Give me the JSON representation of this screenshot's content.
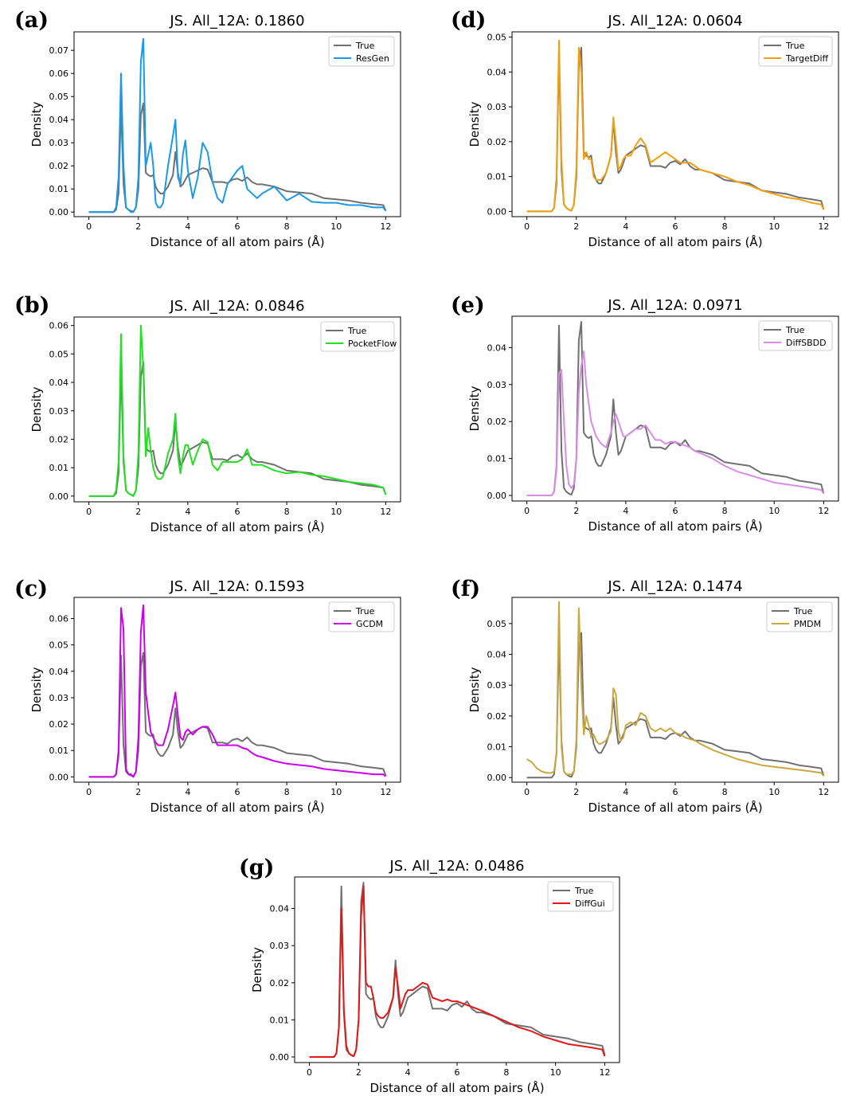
{
  "x_axis_label": "Distance of all atom pairs (Å)",
  "y_axis_label": "Density",
  "true_series": {
    "name": "True",
    "color": "#707070",
    "x": [
      0,
      0.5,
      1.0,
      1.1,
      1.2,
      1.3,
      1.4,
      1.5,
      1.6,
      1.7,
      1.8,
      1.9,
      2.0,
      2.1,
      2.2,
      2.3,
      2.4,
      2.5,
      2.6,
      2.7,
      2.8,
      2.9,
      3.0,
      3.2,
      3.4,
      3.5,
      3.6,
      3.7,
      3.8,
      3.9,
      4.0,
      4.2,
      4.4,
      4.6,
      4.8,
      5.0,
      5.2,
      5.4,
      5.6,
      5.8,
      6.0,
      6.2,
      6.4,
      6.6,
      6.8,
      7.0,
      7.5,
      8.0,
      8.5,
      9.0,
      9.5,
      10.0,
      10.5,
      11.0,
      11.5,
      11.9,
      12.0
    ],
    "y": [
      0,
      0,
      0,
      0.001,
      0.008,
      0.046,
      0.012,
      0.002,
      0.001,
      0.0005,
      0.0002,
      0.002,
      0.01,
      0.042,
      0.047,
      0.017,
      0.016,
      0.0155,
      0.016,
      0.011,
      0.009,
      0.008,
      0.008,
      0.011,
      0.016,
      0.026,
      0.017,
      0.011,
      0.012,
      0.014,
      0.016,
      0.017,
      0.018,
      0.019,
      0.0185,
      0.013,
      0.013,
      0.013,
      0.0125,
      0.014,
      0.0145,
      0.0135,
      0.015,
      0.013,
      0.012,
      0.012,
      0.011,
      0.009,
      0.0085,
      0.008,
      0.006,
      0.0055,
      0.005,
      0.004,
      0.0035,
      0.003,
      0.0005
    ]
  },
  "panels": [
    {
      "label": "(a)",
      "title": "JS. All_12A: 0.1860",
      "series_name": "ResGen",
      "color": "#1a9ae6",
      "yticks": [
        0.0,
        0.01,
        0.02,
        0.03,
        0.04,
        0.05,
        0.06,
        0.07
      ],
      "ylim": [
        -0.002,
        0.078
      ],
      "x": [
        0,
        0.5,
        1.0,
        1.1,
        1.2,
        1.3,
        1.4,
        1.5,
        1.6,
        1.7,
        1.8,
        1.9,
        2.0,
        2.1,
        2.2,
        2.3,
        2.4,
        2.5,
        2.6,
        2.7,
        2.8,
        2.9,
        3.0,
        3.2,
        3.4,
        3.5,
        3.6,
        3.7,
        3.8,
        3.9,
        4.0,
        4.2,
        4.4,
        4.6,
        4.8,
        5.0,
        5.2,
        5.4,
        5.6,
        5.8,
        6.0,
        6.2,
        6.4,
        6.6,
        6.8,
        7.0,
        7.5,
        8.0,
        8.5,
        9.0,
        9.5,
        10.0,
        10.5,
        11.0,
        11.5,
        11.9,
        12.0
      ],
      "y": [
        0,
        0,
        0,
        0.002,
        0.015,
        0.06,
        0.02,
        0.002,
        0.001,
        0,
        0,
        0.002,
        0.015,
        0.065,
        0.075,
        0.02,
        0.025,
        0.03,
        0.02,
        0.004,
        0.002,
        0.002,
        0.004,
        0.02,
        0.033,
        0.04,
        0.015,
        0.012,
        0.025,
        0.031,
        0.018,
        0.006,
        0.015,
        0.03,
        0.026,
        0.013,
        0.006,
        0.004,
        0.012,
        0.015,
        0.018,
        0.02,
        0.01,
        0.008,
        0.006,
        0.008,
        0.011,
        0.005,
        0.008,
        0.0045,
        0.004,
        0.004,
        0.003,
        0.003,
        0.002,
        0.002,
        0.0005
      ]
    },
    {
      "label": "(b)",
      "title": "JS. All_12A: 0.0846",
      "series_name": "PocketFlow",
      "color": "#22e022",
      "yticks": [
        0.0,
        0.01,
        0.02,
        0.03,
        0.04,
        0.05,
        0.06
      ],
      "ylim": [
        -0.002,
        0.063
      ],
      "x": [
        0,
        0.5,
        1.0,
        1.1,
        1.2,
        1.3,
        1.4,
        1.5,
        1.6,
        1.7,
        1.8,
        1.9,
        2.0,
        2.1,
        2.2,
        2.3,
        2.4,
        2.5,
        2.6,
        2.7,
        2.8,
        2.9,
        3.0,
        3.2,
        3.4,
        3.5,
        3.6,
        3.7,
        3.8,
        3.9,
        4.0,
        4.2,
        4.4,
        4.6,
        4.8,
        5.0,
        5.2,
        5.4,
        5.6,
        5.8,
        6.0,
        6.2,
        6.4,
        6.6,
        6.8,
        7.0,
        7.5,
        8.0,
        8.5,
        9.0,
        9.5,
        10.0,
        10.5,
        11.0,
        11.5,
        11.9,
        12.0
      ],
      "y": [
        0,
        0,
        0,
        0.002,
        0.012,
        0.057,
        0.014,
        0.002,
        0.001,
        0.0005,
        0,
        0.002,
        0.015,
        0.06,
        0.045,
        0.014,
        0.024,
        0.016,
        0.01,
        0.007,
        0.006,
        0.006,
        0.007,
        0.015,
        0.02,
        0.029,
        0.014,
        0.008,
        0.014,
        0.018,
        0.018,
        0.011,
        0.016,
        0.02,
        0.019,
        0.011,
        0.009,
        0.012,
        0.012,
        0.012,
        0.012,
        0.013,
        0.0165,
        0.011,
        0.011,
        0.011,
        0.009,
        0.008,
        0.0085,
        0.0075,
        0.007,
        0.006,
        0.005,
        0.0045,
        0.004,
        0.003,
        0.0005
      ]
    },
    {
      "label": "(c)",
      "title": "JS. All_12A: 0.1593",
      "series_name": "GCDM",
      "color": "#cc00ee",
      "yticks": [
        0.0,
        0.01,
        0.02,
        0.03,
        0.04,
        0.05,
        0.06
      ],
      "ylim": [
        -0.002,
        0.068
      ],
      "x": [
        0,
        0.5,
        1.0,
        1.1,
        1.2,
        1.3,
        1.4,
        1.5,
        1.6,
        1.7,
        1.8,
        1.9,
        2.0,
        2.1,
        2.2,
        2.3,
        2.4,
        2.5,
        2.6,
        2.7,
        2.8,
        2.9,
        3.0,
        3.2,
        3.4,
        3.5,
        3.6,
        3.7,
        3.8,
        3.9,
        4.0,
        4.2,
        4.4,
        4.6,
        4.8,
        5.0,
        5.2,
        5.4,
        5.6,
        5.8,
        6.0,
        6.2,
        6.4,
        6.6,
        6.8,
        7.0,
        7.5,
        8.0,
        8.5,
        9.0,
        9.5,
        10.0,
        10.5,
        11.0,
        11.5,
        11.9,
        12.0
      ],
      "y": [
        0,
        0,
        0,
        0.001,
        0.01,
        0.064,
        0.056,
        0.003,
        0.001,
        0.001,
        0,
        0.002,
        0.015,
        0.055,
        0.065,
        0.032,
        0.024,
        0.017,
        0.015,
        0.013,
        0.012,
        0.012,
        0.012,
        0.018,
        0.027,
        0.032,
        0.023,
        0.015,
        0.014,
        0.017,
        0.018,
        0.016,
        0.018,
        0.019,
        0.019,
        0.016,
        0.012,
        0.012,
        0.012,
        0.012,
        0.012,
        0.011,
        0.0105,
        0.009,
        0.008,
        0.0075,
        0.006,
        0.005,
        0.0045,
        0.004,
        0.003,
        0.0025,
        0.002,
        0.0015,
        0.001,
        0.001,
        0.0002
      ]
    },
    {
      "label": "(d)",
      "title": "JS. All_12A: 0.0604",
      "series_name": "TargetDiff",
      "color": "#f0a010",
      "yticks": [
        0.0,
        0.01,
        0.02,
        0.03,
        0.04,
        0.05
      ],
      "ylim": [
        -0.0015,
        0.0515
      ],
      "x": [
        0,
        0.5,
        1.0,
        1.1,
        1.2,
        1.3,
        1.4,
        1.5,
        1.6,
        1.7,
        1.8,
        1.9,
        2.0,
        2.1,
        2.2,
        2.3,
        2.4,
        2.5,
        2.6,
        2.7,
        2.8,
        2.9,
        3.0,
        3.2,
        3.4,
        3.5,
        3.6,
        3.7,
        3.8,
        3.9,
        4.0,
        4.2,
        4.4,
        4.6,
        4.8,
        5.0,
        5.2,
        5.4,
        5.6,
        5.8,
        6.0,
        6.2,
        6.4,
        6.6,
        6.8,
        7.0,
        7.5,
        8.0,
        8.5,
        9.0,
        9.5,
        10.0,
        10.5,
        11.0,
        11.5,
        11.9,
        12.0
      ],
      "y": [
        0,
        0,
        0,
        0.001,
        0.01,
        0.049,
        0.015,
        0.002,
        0.001,
        0.0005,
        0.0002,
        0.002,
        0.012,
        0.047,
        0.04,
        0.015,
        0.017,
        0.015,
        0.015,
        0.01,
        0.009,
        0.009,
        0.009,
        0.011,
        0.016,
        0.027,
        0.02,
        0.012,
        0.013,
        0.015,
        0.016,
        0.016,
        0.019,
        0.021,
        0.019,
        0.014,
        0.015,
        0.016,
        0.017,
        0.016,
        0.015,
        0.014,
        0.014,
        0.014,
        0.013,
        0.012,
        0.011,
        0.01,
        0.0085,
        0.0075,
        0.006,
        0.005,
        0.004,
        0.0035,
        0.0025,
        0.002,
        0.0005
      ]
    },
    {
      "label": "(e)",
      "title": "JS. All_12A: 0.0971",
      "series_name": "DiffSBDD",
      "color": "#d98ce6",
      "yticks": [
        0.0,
        0.01,
        0.02,
        0.03,
        0.04
      ],
      "ylim": [
        -0.0015,
        0.0485
      ],
      "x": [
        0,
        0.5,
        1.0,
        1.1,
        1.2,
        1.3,
        1.4,
        1.5,
        1.6,
        1.7,
        1.8,
        1.9,
        2.0,
        2.1,
        2.2,
        2.3,
        2.4,
        2.5,
        2.6,
        2.7,
        2.8,
        2.9,
        3.0,
        3.2,
        3.4,
        3.5,
        3.6,
        3.7,
        3.8,
        3.9,
        4.0,
        4.2,
        4.4,
        4.6,
        4.8,
        5.0,
        5.2,
        5.4,
        5.6,
        5.8,
        6.0,
        6.2,
        6.4,
        6.6,
        6.8,
        7.0,
        7.5,
        8.0,
        8.5,
        9.0,
        9.5,
        10.0,
        10.5,
        11.0,
        11.5,
        11.9,
        12.0
      ],
      "y": [
        0,
        0,
        0,
        0.001,
        0.007,
        0.033,
        0.034,
        0.02,
        0.008,
        0.003,
        0.002,
        0.003,
        0.01,
        0.028,
        0.035,
        0.039,
        0.03,
        0.025,
        0.02,
        0.018,
        0.016,
        0.015,
        0.014,
        0.013,
        0.017,
        0.02,
        0.022,
        0.02,
        0.018,
        0.016,
        0.016,
        0.017,
        0.018,
        0.018,
        0.019,
        0.017,
        0.015,
        0.015,
        0.014,
        0.0145,
        0.0145,
        0.014,
        0.0135,
        0.013,
        0.012,
        0.0115,
        0.01,
        0.008,
        0.0065,
        0.0055,
        0.0045,
        0.0035,
        0.003,
        0.0025,
        0.002,
        0.0015,
        0.0005
      ]
    },
    {
      "label": "(f)",
      "title": "JS. All_12A: 0.1474",
      "series_name": "PMDM",
      "color": "#c9a840",
      "yticks": [
        0.0,
        0.01,
        0.02,
        0.03,
        0.04,
        0.05
      ],
      "ylim": [
        -0.0015,
        0.0585
      ],
      "x": [
        0,
        0.2,
        0.4,
        0.6,
        0.8,
        1.0,
        1.1,
        1.2,
        1.3,
        1.4,
        1.5,
        1.6,
        1.7,
        1.8,
        1.9,
        2.0,
        2.1,
        2.2,
        2.3,
        2.4,
        2.5,
        2.6,
        2.7,
        2.8,
        2.9,
        3.0,
        3.2,
        3.4,
        3.5,
        3.6,
        3.7,
        3.8,
        3.9,
        4.0,
        4.2,
        4.4,
        4.6,
        4.8,
        5.0,
        5.2,
        5.4,
        5.6,
        5.8,
        6.0,
        6.2,
        6.4,
        6.6,
        6.8,
        7.0,
        7.5,
        8.0,
        8.5,
        9.0,
        9.5,
        10.0,
        10.5,
        11.0,
        11.5,
        11.9,
        12.0
      ],
      "y": [
        0.006,
        0.005,
        0.003,
        0.002,
        0.0015,
        0.0015,
        0.002,
        0.008,
        0.057,
        0.01,
        0.002,
        0.001,
        0.001,
        0.001,
        0.002,
        0.012,
        0.055,
        0.03,
        0.014,
        0.02,
        0.017,
        0.013,
        0.014,
        0.012,
        0.011,
        0.011,
        0.012,
        0.015,
        0.029,
        0.027,
        0.015,
        0.012,
        0.013,
        0.017,
        0.018,
        0.017,
        0.021,
        0.02,
        0.016,
        0.015,
        0.016,
        0.015,
        0.016,
        0.0145,
        0.014,
        0.013,
        0.0125,
        0.012,
        0.011,
        0.009,
        0.0075,
        0.006,
        0.005,
        0.004,
        0.0035,
        0.003,
        0.0025,
        0.002,
        0.0015,
        0.0005
      ]
    },
    {
      "label": "(g)",
      "title": "JS. All_12A: 0.0486",
      "series_name": "DiffGui",
      "color": "#e01818",
      "yticks": [
        0.0,
        0.01,
        0.02,
        0.03,
        0.04
      ],
      "ylim": [
        -0.0015,
        0.0485
      ],
      "x": [
        0,
        0.5,
        1.0,
        1.1,
        1.2,
        1.3,
        1.4,
        1.5,
        1.6,
        1.7,
        1.8,
        1.9,
        2.0,
        2.1,
        2.2,
        2.3,
        2.4,
        2.5,
        2.6,
        2.7,
        2.8,
        2.9,
        3.0,
        3.2,
        3.4,
        3.5,
        3.6,
        3.7,
        3.8,
        3.9,
        4.0,
        4.2,
        4.4,
        4.6,
        4.8,
        5.0,
        5.2,
        5.4,
        5.6,
        5.8,
        6.0,
        6.2,
        6.4,
        6.6,
        6.8,
        7.0,
        7.5,
        8.0,
        8.5,
        9.0,
        9.5,
        10.0,
        10.5,
        11.0,
        11.5,
        11.9,
        12.0
      ],
      "y": [
        0,
        0,
        0,
        0.001,
        0.008,
        0.04,
        0.013,
        0.003,
        0.001,
        0.0005,
        0.0002,
        0.002,
        0.01,
        0.038,
        0.046,
        0.02,
        0.019,
        0.019,
        0.016,
        0.012,
        0.011,
        0.0105,
        0.0105,
        0.012,
        0.016,
        0.024,
        0.019,
        0.013,
        0.015,
        0.017,
        0.018,
        0.018,
        0.019,
        0.02,
        0.0195,
        0.016,
        0.0155,
        0.015,
        0.0155,
        0.015,
        0.015,
        0.0145,
        0.014,
        0.0135,
        0.013,
        0.0125,
        0.011,
        0.0095,
        0.008,
        0.007,
        0.0055,
        0.0045,
        0.0035,
        0.003,
        0.0025,
        0.002,
        0.0002
      ]
    }
  ],
  "chart_data": [
    {
      "type": "line",
      "title": "JS. All_12A: 0.1860",
      "xlabel": "Distance of all atom pairs (Å)",
      "ylabel": "Density",
      "xlim": [
        0,
        12
      ],
      "ylim": [
        0,
        0.078
      ],
      "series": [
        {
          "name": "True"
        },
        {
          "name": "ResGen"
        }
      ],
      "legend": "top-right"
    },
    {
      "type": "line",
      "title": "JS. All_12A: 0.0846",
      "xlabel": "Distance of all atom pairs (Å)",
      "ylabel": "Density",
      "xlim": [
        0,
        12
      ],
      "ylim": [
        0,
        0.063
      ],
      "series": [
        {
          "name": "True"
        },
        {
          "name": "PocketFlow"
        }
      ],
      "legend": "top-right"
    },
    {
      "type": "line",
      "title": "JS. All_12A: 0.1593",
      "xlabel": "Distance of all atom pairs (Å)",
      "ylabel": "Density",
      "xlim": [
        0,
        12
      ],
      "ylim": [
        0,
        0.068
      ],
      "series": [
        {
          "name": "True"
        },
        {
          "name": "GCDM"
        }
      ],
      "legend": "top-right"
    },
    {
      "type": "line",
      "title": "JS. All_12A: 0.0604",
      "xlabel": "Distance of all atom pairs (Å)",
      "ylabel": "Density",
      "xlim": [
        0,
        12
      ],
      "ylim": [
        0,
        0.0515
      ],
      "series": [
        {
          "name": "True"
        },
        {
          "name": "TargetDiff"
        }
      ],
      "legend": "top-right"
    },
    {
      "type": "line",
      "title": "JS. All_12A: 0.0971",
      "xlabel": "Distance of all atom pairs (Å)",
      "ylabel": "Density",
      "xlim": [
        0,
        12
      ],
      "ylim": [
        0,
        0.0485
      ],
      "series": [
        {
          "name": "True"
        },
        {
          "name": "DiffSBDD"
        }
      ],
      "legend": "top-right"
    },
    {
      "type": "line",
      "title": "JS. All_12A: 0.1474",
      "xlabel": "Distance of all atom pairs (Å)",
      "ylabel": "Density",
      "xlim": [
        0,
        12
      ],
      "ylim": [
        0,
        0.0585
      ],
      "series": [
        {
          "name": "True"
        },
        {
          "name": "PMDM"
        }
      ],
      "legend": "top-right"
    },
    {
      "type": "line",
      "title": "JS. All_12A: 0.0486",
      "xlabel": "Distance of all atom pairs (Å)",
      "ylabel": "Density",
      "xlim": [
        0,
        12
      ],
      "ylim": [
        0,
        0.0485
      ],
      "series": [
        {
          "name": "True"
        },
        {
          "name": "DiffGui"
        }
      ],
      "legend": "top-right"
    }
  ]
}
